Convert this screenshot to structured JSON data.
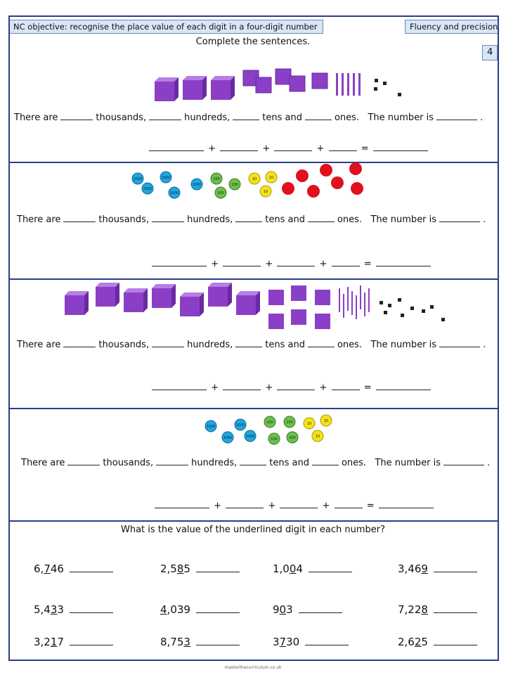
{
  "header": {
    "objective": "NC objective: recognise the place value of each digit in a four-digit number",
    "category": "Fluency and precision",
    "level": "4"
  },
  "instruction": "Complete the sentences.",
  "sentence_parts": {
    "start": "There are",
    "thousands": "thousands,",
    "hundreds": "hundreds,",
    "tens": "tens and",
    "ones": "ones.",
    "number": "The number is",
    "end": "."
  },
  "equation_symbols": {
    "plus": "+",
    "equals": "="
  },
  "counters": {
    "blue_label": "1000",
    "green_label": "100",
    "yellow_label": "10",
    "colors": {
      "blue": "#1ea7e1",
      "green": "#6cc04a",
      "yellow": "#f5e21a",
      "red": "#e0101e",
      "purple": "#8b3fc6"
    }
  },
  "underline_question": "What is the value of the underlined digit in each number?",
  "numbers": [
    [
      {
        "pre": "6,",
        "u": "7",
        "post": "46"
      },
      {
        "pre": "2,5",
        "u": "8",
        "post": "5"
      },
      {
        "pre": "1,0",
        "u": "0",
        "post": "4"
      },
      {
        "pre": "3,46",
        "u": "9",
        "post": ""
      }
    ],
    [
      {
        "pre": "5,4",
        "u": "3",
        "post": "3"
      },
      {
        "pre": "",
        "u": "4",
        "post": ",039"
      },
      {
        "pre": "9",
        "u": "0",
        "post": "3"
      },
      {
        "pre": "7,22",
        "u": "8",
        "post": ""
      }
    ],
    [
      {
        "pre": "3,2",
        "u": "1",
        "post": "7"
      },
      {
        "pre": "8,75",
        "u": "3",
        "post": ""
      },
      {
        "pre": "3",
        "u": "7",
        "post": "30"
      },
      {
        "pre": "2,6",
        "u": "2",
        "post": "5"
      }
    ]
  ],
  "footer": "masterthecurriculum.co.uk"
}
